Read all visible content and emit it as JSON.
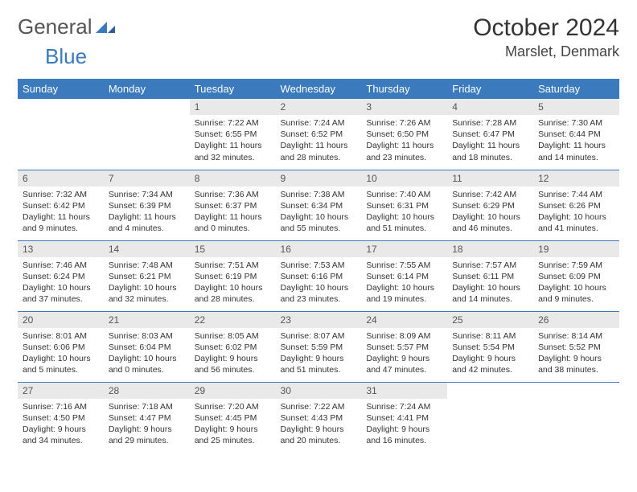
{
  "brand": {
    "part1": "General",
    "part2": "Blue",
    "accent": "#3a7abd",
    "text_color": "#555"
  },
  "title": "October 2024",
  "location": "Marslet, Denmark",
  "header_bg": "#3a7abd",
  "daynum_bg": "#e9e9e9",
  "day_names": [
    "Sunday",
    "Monday",
    "Tuesday",
    "Wednesday",
    "Thursday",
    "Friday",
    "Saturday"
  ],
  "weeks": [
    [
      {
        "n": "",
        "sr": "",
        "ss": "",
        "dl": ""
      },
      {
        "n": "",
        "sr": "",
        "ss": "",
        "dl": ""
      },
      {
        "n": "1",
        "sr": "Sunrise: 7:22 AM",
        "ss": "Sunset: 6:55 PM",
        "dl": "Daylight: 11 hours and 32 minutes."
      },
      {
        "n": "2",
        "sr": "Sunrise: 7:24 AM",
        "ss": "Sunset: 6:52 PM",
        "dl": "Daylight: 11 hours and 28 minutes."
      },
      {
        "n": "3",
        "sr": "Sunrise: 7:26 AM",
        "ss": "Sunset: 6:50 PM",
        "dl": "Daylight: 11 hours and 23 minutes."
      },
      {
        "n": "4",
        "sr": "Sunrise: 7:28 AM",
        "ss": "Sunset: 6:47 PM",
        "dl": "Daylight: 11 hours and 18 minutes."
      },
      {
        "n": "5",
        "sr": "Sunrise: 7:30 AM",
        "ss": "Sunset: 6:44 PM",
        "dl": "Daylight: 11 hours and 14 minutes."
      }
    ],
    [
      {
        "n": "6",
        "sr": "Sunrise: 7:32 AM",
        "ss": "Sunset: 6:42 PM",
        "dl": "Daylight: 11 hours and 9 minutes."
      },
      {
        "n": "7",
        "sr": "Sunrise: 7:34 AM",
        "ss": "Sunset: 6:39 PM",
        "dl": "Daylight: 11 hours and 4 minutes."
      },
      {
        "n": "8",
        "sr": "Sunrise: 7:36 AM",
        "ss": "Sunset: 6:37 PM",
        "dl": "Daylight: 11 hours and 0 minutes."
      },
      {
        "n": "9",
        "sr": "Sunrise: 7:38 AM",
        "ss": "Sunset: 6:34 PM",
        "dl": "Daylight: 10 hours and 55 minutes."
      },
      {
        "n": "10",
        "sr": "Sunrise: 7:40 AM",
        "ss": "Sunset: 6:31 PM",
        "dl": "Daylight: 10 hours and 51 minutes."
      },
      {
        "n": "11",
        "sr": "Sunrise: 7:42 AM",
        "ss": "Sunset: 6:29 PM",
        "dl": "Daylight: 10 hours and 46 minutes."
      },
      {
        "n": "12",
        "sr": "Sunrise: 7:44 AM",
        "ss": "Sunset: 6:26 PM",
        "dl": "Daylight: 10 hours and 41 minutes."
      }
    ],
    [
      {
        "n": "13",
        "sr": "Sunrise: 7:46 AM",
        "ss": "Sunset: 6:24 PM",
        "dl": "Daylight: 10 hours and 37 minutes."
      },
      {
        "n": "14",
        "sr": "Sunrise: 7:48 AM",
        "ss": "Sunset: 6:21 PM",
        "dl": "Daylight: 10 hours and 32 minutes."
      },
      {
        "n": "15",
        "sr": "Sunrise: 7:51 AM",
        "ss": "Sunset: 6:19 PM",
        "dl": "Daylight: 10 hours and 28 minutes."
      },
      {
        "n": "16",
        "sr": "Sunrise: 7:53 AM",
        "ss": "Sunset: 6:16 PM",
        "dl": "Daylight: 10 hours and 23 minutes."
      },
      {
        "n": "17",
        "sr": "Sunrise: 7:55 AM",
        "ss": "Sunset: 6:14 PM",
        "dl": "Daylight: 10 hours and 19 minutes."
      },
      {
        "n": "18",
        "sr": "Sunrise: 7:57 AM",
        "ss": "Sunset: 6:11 PM",
        "dl": "Daylight: 10 hours and 14 minutes."
      },
      {
        "n": "19",
        "sr": "Sunrise: 7:59 AM",
        "ss": "Sunset: 6:09 PM",
        "dl": "Daylight: 10 hours and 9 minutes."
      }
    ],
    [
      {
        "n": "20",
        "sr": "Sunrise: 8:01 AM",
        "ss": "Sunset: 6:06 PM",
        "dl": "Daylight: 10 hours and 5 minutes."
      },
      {
        "n": "21",
        "sr": "Sunrise: 8:03 AM",
        "ss": "Sunset: 6:04 PM",
        "dl": "Daylight: 10 hours and 0 minutes."
      },
      {
        "n": "22",
        "sr": "Sunrise: 8:05 AM",
        "ss": "Sunset: 6:02 PM",
        "dl": "Daylight: 9 hours and 56 minutes."
      },
      {
        "n": "23",
        "sr": "Sunrise: 8:07 AM",
        "ss": "Sunset: 5:59 PM",
        "dl": "Daylight: 9 hours and 51 minutes."
      },
      {
        "n": "24",
        "sr": "Sunrise: 8:09 AM",
        "ss": "Sunset: 5:57 PM",
        "dl": "Daylight: 9 hours and 47 minutes."
      },
      {
        "n": "25",
        "sr": "Sunrise: 8:11 AM",
        "ss": "Sunset: 5:54 PM",
        "dl": "Daylight: 9 hours and 42 minutes."
      },
      {
        "n": "26",
        "sr": "Sunrise: 8:14 AM",
        "ss": "Sunset: 5:52 PM",
        "dl": "Daylight: 9 hours and 38 minutes."
      }
    ],
    [
      {
        "n": "27",
        "sr": "Sunrise: 7:16 AM",
        "ss": "Sunset: 4:50 PM",
        "dl": "Daylight: 9 hours and 34 minutes."
      },
      {
        "n": "28",
        "sr": "Sunrise: 7:18 AM",
        "ss": "Sunset: 4:47 PM",
        "dl": "Daylight: 9 hours and 29 minutes."
      },
      {
        "n": "29",
        "sr": "Sunrise: 7:20 AM",
        "ss": "Sunset: 4:45 PM",
        "dl": "Daylight: 9 hours and 25 minutes."
      },
      {
        "n": "30",
        "sr": "Sunrise: 7:22 AM",
        "ss": "Sunset: 4:43 PM",
        "dl": "Daylight: 9 hours and 20 minutes."
      },
      {
        "n": "31",
        "sr": "Sunrise: 7:24 AM",
        "ss": "Sunset: 4:41 PM",
        "dl": "Daylight: 9 hours and 16 minutes."
      },
      {
        "n": "",
        "sr": "",
        "ss": "",
        "dl": ""
      },
      {
        "n": "",
        "sr": "",
        "ss": "",
        "dl": ""
      }
    ]
  ]
}
